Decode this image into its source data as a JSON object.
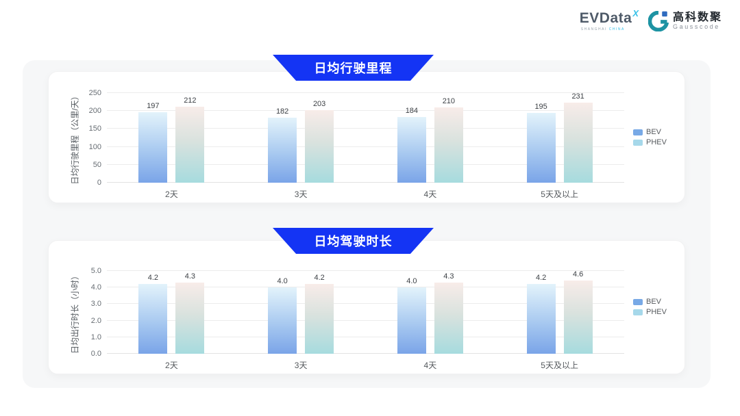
{
  "header": {
    "logo_evdata": {
      "text": "EVData",
      "superscript": "X",
      "subtext_left": "SHANGHAI",
      "subtext_right": "CHINA"
    },
    "logo_gausscode": {
      "cn": "高科数聚",
      "en": "Gausscode"
    }
  },
  "colors": {
    "banner_blue": "#1434f4",
    "container_bg": "#f6f7f8",
    "card_bg": "#ffffff",
    "bev_gradient_top": "#e3f3fb",
    "bev_gradient_bottom": "#7aa4e8",
    "phev_gradient_top": "#f8ece9",
    "phev_gradient_bottom": "#a6dbde",
    "legend_bev": "#78a9e6",
    "legend_phev": "#a6d8ea"
  },
  "chart_data": [
    {
      "type": "bar",
      "title": "日均行驶里程",
      "ylabel": "日均行驶里程（公里/天）",
      "categories": [
        "2天",
        "3天",
        "4天",
        "5天及以上"
      ],
      "series": [
        {
          "name": "BEV",
          "values": [
            197,
            182,
            184,
            195
          ],
          "labels": [
            "197",
            "182",
            "184",
            "195"
          ]
        },
        {
          "name": "PHEV",
          "values": [
            212,
            203,
            210,
            231
          ],
          "labels": [
            "212",
            "203",
            "210",
            "231"
          ]
        }
      ],
      "ylim": [
        0,
        250
      ],
      "yticks": [
        "0",
        "50",
        "100",
        "150",
        "200",
        "250"
      ],
      "grid": true,
      "legend_position": "right"
    },
    {
      "type": "bar",
      "title": "日均驾驶时长",
      "ylabel": "日均出行时长（小时）",
      "categories": [
        "2天",
        "3天",
        "4天",
        "5天及以上"
      ],
      "series": [
        {
          "name": "BEV",
          "values": [
            4.2,
            4.0,
            4.0,
            4.2
          ],
          "labels": [
            "4.2",
            "4.0",
            "4.0",
            "4.2"
          ]
        },
        {
          "name": "PHEV",
          "values": [
            4.3,
            4.2,
            4.3,
            4.6
          ],
          "labels": [
            "4.3",
            "4.2",
            "4.3",
            "4.6"
          ]
        }
      ],
      "ylim": [
        0,
        5
      ],
      "yticks": [
        "0.0",
        "1.0",
        "2.0",
        "3.0",
        "4.0",
        "5.0"
      ],
      "grid": true,
      "legend_position": "right"
    }
  ]
}
